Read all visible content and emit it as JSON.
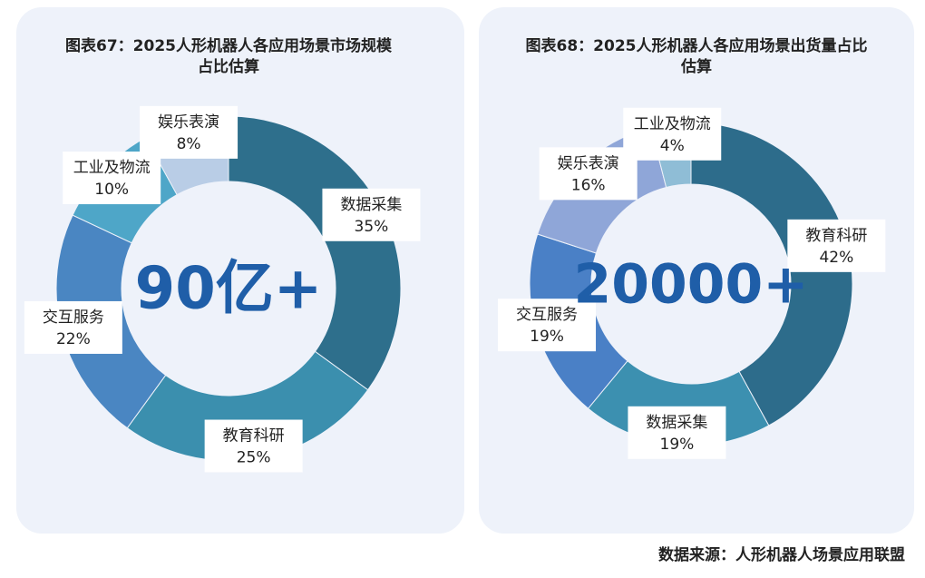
{
  "chart_data": [
    {
      "type": "pie",
      "title": "图表67：2025人形机器人各应用场景市场规模占比估算",
      "center_label": "90亿+",
      "categories": [
        "数据采集",
        "教育科研",
        "交互服务",
        "工业及物流",
        "娱乐表演"
      ],
      "values": [
        35,
        25,
        22,
        10,
        8
      ],
      "value_labels": [
        "35%",
        "25%",
        "22%",
        "10%",
        "8%"
      ],
      "colors": [
        "#2e6f8c",
        "#3b8fae",
        "#4a86c2",
        "#4ea6c8",
        "#b9cde6"
      ]
    },
    {
      "type": "pie",
      "title": "图表68：2025人形机器人各应用场景出货量占比估算",
      "center_label": "20000+",
      "categories": [
        "教育科研",
        "数据采集",
        "交互服务",
        "娱乐表演",
        "工业及物流"
      ],
      "values": [
        42,
        19,
        19,
        16,
        4
      ],
      "value_labels": [
        "42%",
        "19%",
        "19%",
        "16%",
        "4%"
      ],
      "colors": [
        "#2d6c8b",
        "#3c90b0",
        "#4a80c6",
        "#8fa6d8",
        "#8fbdd6"
      ]
    }
  ],
  "source": "数据来源：人形机器人场景应用联盟"
}
